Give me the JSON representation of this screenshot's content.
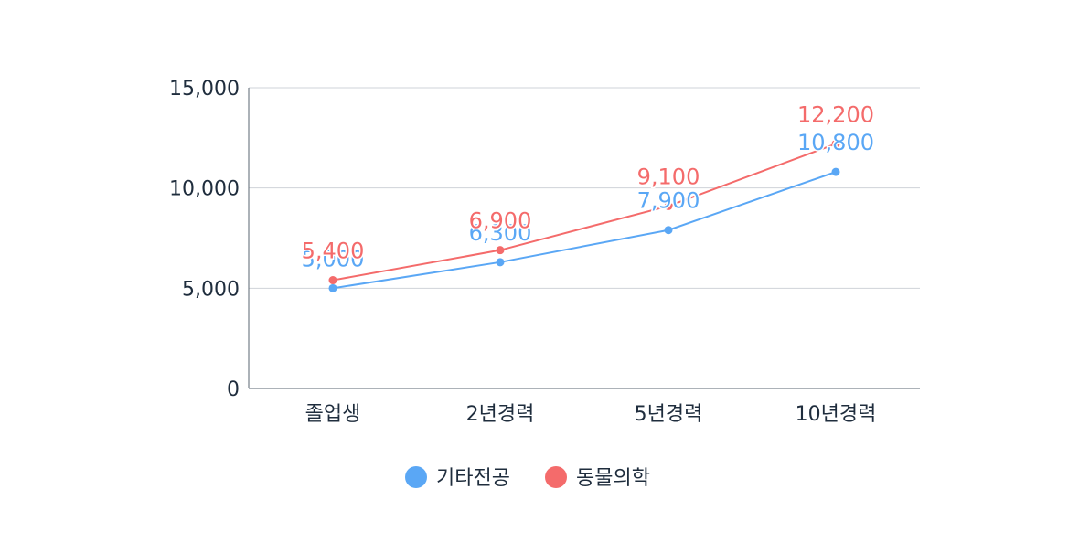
{
  "chart_data": {
    "type": "line",
    "categories": [
      "졸업생",
      "2년경력",
      "5년경력",
      "10년경력"
    ],
    "series": [
      {
        "name": "기타전공",
        "color": "#5aa7f5",
        "values": [
          5000,
          6300,
          7900,
          10800
        ]
      },
      {
        "name": "동물의학",
        "color": "#f46b6b",
        "values": [
          5400,
          6900,
          9100,
          12200
        ]
      }
    ],
    "yticks": [
      0,
      5000,
      10000,
      15000
    ],
    "ylim": [
      0,
      15000
    ],
    "grid": true,
    "legend_position": "bottom",
    "data_labels": true
  }
}
